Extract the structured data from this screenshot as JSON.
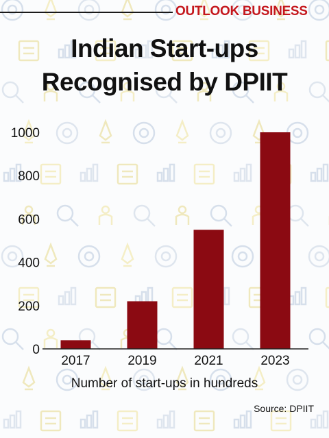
{
  "brand": {
    "name": "OUTLOOK BUSINESS",
    "color": "#c4161c"
  },
  "title": {
    "line1": "Indian Start-ups",
    "line2": "Recognised by DPIIT"
  },
  "source": "Source: DPIIT",
  "chart_data": {
    "type": "bar",
    "title": "Indian Start-ups Recognised by DPIIT",
    "xlabel": "Number of start-ups in hundreds",
    "ylabel": "",
    "categories": [
      "2017",
      "2019",
      "2021",
      "2023"
    ],
    "values": [
      40,
      220,
      550,
      1000
    ],
    "ylim": [
      0,
      1000
    ],
    "yticks": [
      0,
      200,
      400,
      600,
      800,
      1000
    ],
    "grid": false,
    "bar_color": "#8b0a12"
  }
}
